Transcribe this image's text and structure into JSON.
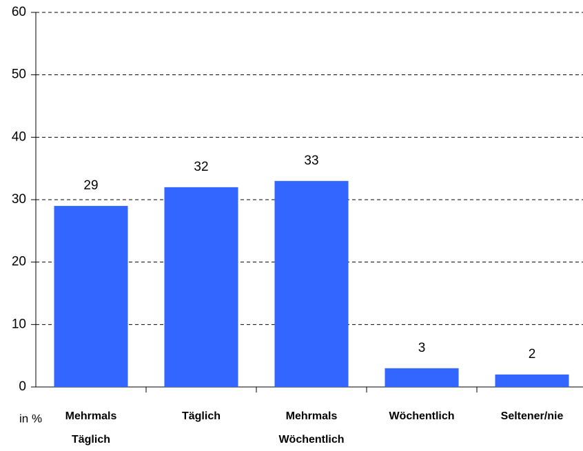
{
  "chart_data": {
    "type": "bar",
    "y_label": "in %",
    "categories": [
      [
        "Mehrmals",
        "Täglich"
      ],
      [
        "Täglich"
      ],
      [
        "Mehrmals",
        "Wöchentlich"
      ],
      [
        "Wöchentlich"
      ],
      [
        "Seltener/nie"
      ]
    ],
    "values": [
      29,
      32,
      33,
      3,
      2
    ],
    "color": "#3366ff",
    "ylim": [
      0,
      60
    ],
    "yticks": [
      0,
      10,
      20,
      30,
      40,
      50,
      60
    ],
    "grid": true
  }
}
